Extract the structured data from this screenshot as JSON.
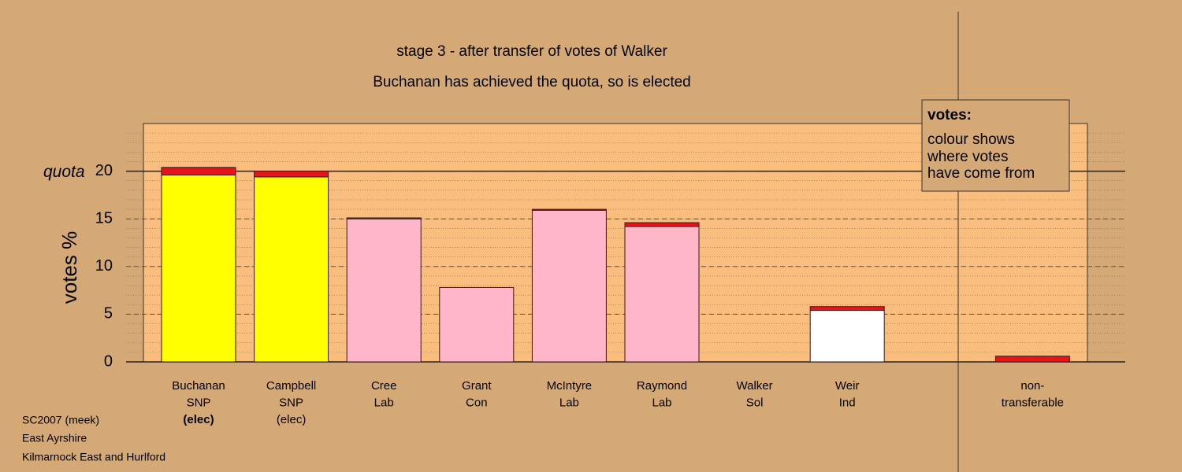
{
  "chart_data": {
    "type": "bar",
    "title": "stage 3 - after transfer of votes of Walker",
    "subtitle": "Buchanan has achieved the quota, so is elected",
    "ylabel": "votes %",
    "categories": [
      [
        "Buchanan",
        "SNP",
        "(elec)"
      ],
      [
        "Campbell",
        "SNP",
        "(elec)"
      ],
      [
        "Cree",
        "Lab"
      ],
      [
        "Grant",
        "Con"
      ],
      [
        "McIntyre",
        "Lab"
      ],
      [
        "Raymond",
        "Lab"
      ],
      [
        "Walker",
        "Sol"
      ],
      [
        "Weir",
        "Ind"
      ],
      [
        "non-",
        "transferable"
      ]
    ],
    "series": [
      {
        "colors": [
          "#ffff00",
          "#ffff00",
          "#ffb6c8",
          "#ffb6c8",
          "#ffb6c8",
          "#ffb6c8",
          "#ffb6c8",
          "#ffffff",
          "#ff1a1a"
        ],
        "values": [
          19.6,
          19.4,
          15.0,
          7.8,
          15.9,
          14.2,
          0,
          5.4,
          0
        ]
      },
      {
        "color": "#e8141c",
        "values": [
          0.8,
          0.6,
          0.1,
          0,
          0.1,
          0.4,
          0,
          0.4,
          0.6
        ]
      }
    ],
    "ylim": [
      0,
      25
    ],
    "yticks": [
      0,
      5,
      10,
      15,
      20
    ],
    "grid": true,
    "quota": {
      "label": "quota",
      "value": 20
    },
    "legend_box": {
      "heading": "votes:",
      "lines": [
        "colour shows",
        "where votes",
        "have come from"
      ]
    },
    "footer": [
      "SC2007 (meek)",
      "East Ayrshire",
      "Kilmarnock East and Hurlford"
    ]
  }
}
